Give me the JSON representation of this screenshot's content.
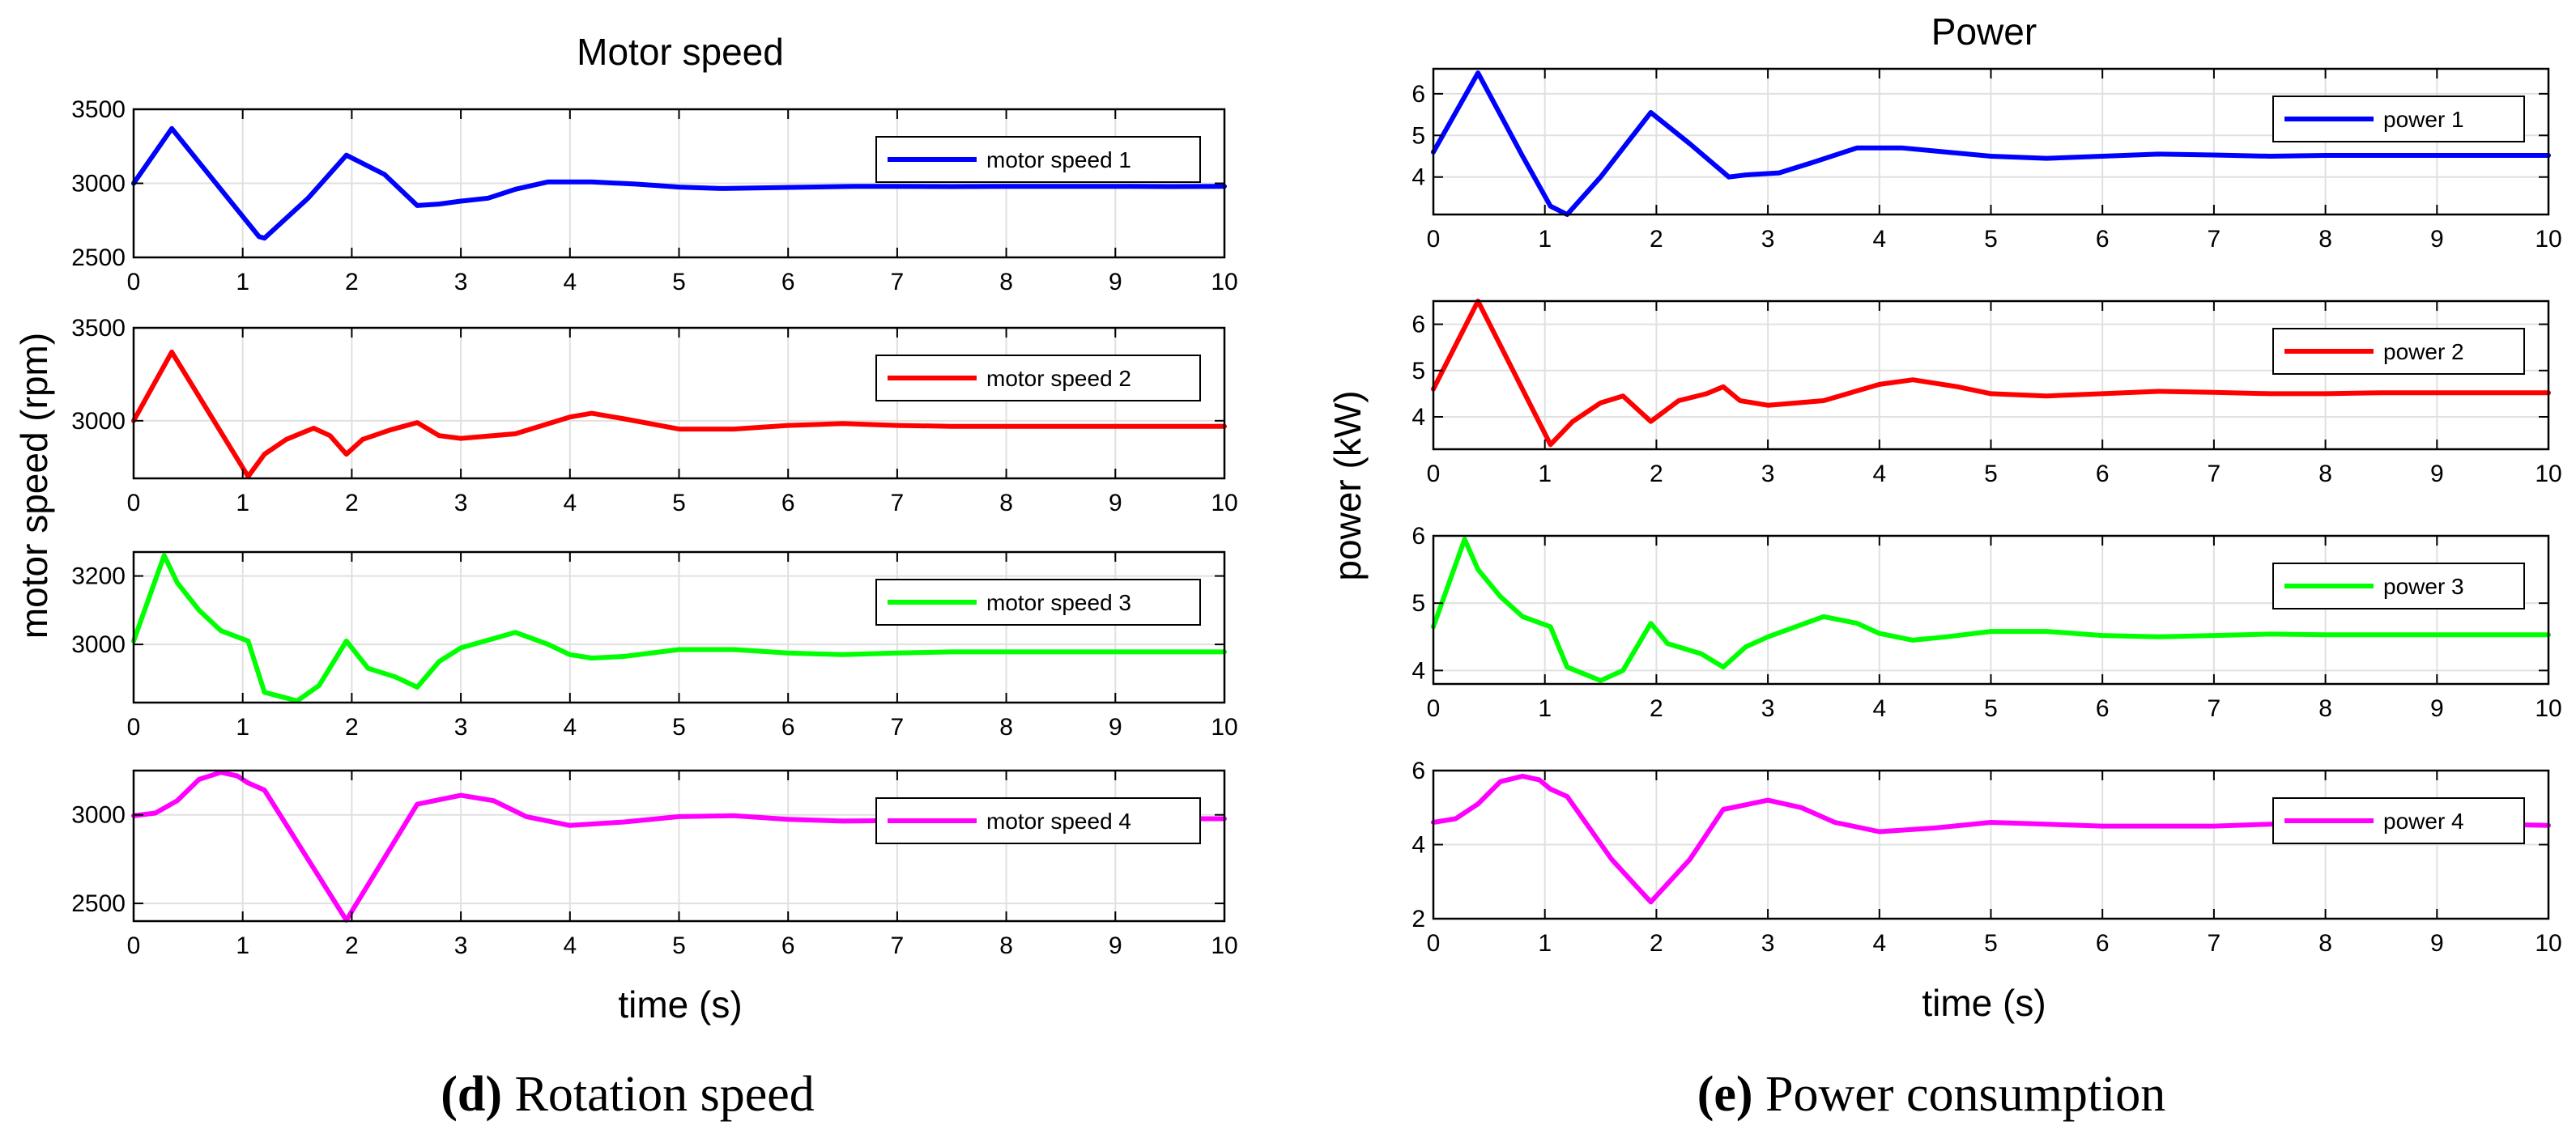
{
  "panels": [
    {
      "panel_title": "Motor speed",
      "ylabel": "motor speed (rpm)",
      "xlabel": "time (s)",
      "caption_letter": "(d)",
      "caption_text": " Rotation speed"
    },
    {
      "panel_title": "Power",
      "ylabel": "power (kW)",
      "xlabel": "time (s)",
      "caption_letter": "(e)",
      "caption_text": " Power consumption"
    }
  ],
  "chart_data": [
    {
      "type": "line",
      "xlim": [
        0,
        10
      ],
      "ylim": [
        2500,
        3500
      ],
      "xticks": [
        0,
        1,
        2,
        3,
        4,
        5,
        6,
        7,
        8,
        9,
        10
      ],
      "yticks": [
        2500,
        3000,
        3500
      ],
      "grid": true,
      "legend_position": "top-right",
      "series": [
        {
          "name": "motor speed 1",
          "color": "#0000ff",
          "x": [
            0,
            0.35,
            1.15,
            1.2,
            1.6,
            1.95,
            2.3,
            2.6,
            2.8,
            3.0,
            3.25,
            3.5,
            3.8,
            4.2,
            4.6,
            5.0,
            5.4,
            5.8,
            6.2,
            6.6,
            7.0,
            7.5,
            8.0,
            8.5,
            9.0,
            9.5,
            10.0
          ],
          "y": [
            3000,
            3370,
            2640,
            2630,
            2900,
            3190,
            3060,
            2850,
            2860,
            2880,
            2900,
            2960,
            3010,
            3010,
            2995,
            2975,
            2965,
            2970,
            2975,
            2980,
            2980,
            2978,
            2980,
            2980,
            2980,
            2978,
            2980
          ]
        }
      ]
    },
    {
      "type": "line",
      "xlim": [
        0,
        10
      ],
      "ylim": [
        2690,
        3500
      ],
      "xticks": [
        0,
        1,
        2,
        3,
        4,
        5,
        6,
        7,
        8,
        9,
        10
      ],
      "yticks": [
        3000,
        3500
      ],
      "grid": true,
      "legend_position": "top-right",
      "series": [
        {
          "name": "motor speed 2",
          "color": "#ff0000",
          "x": [
            0,
            0.35,
            1.05,
            1.2,
            1.4,
            1.65,
            1.8,
            1.95,
            2.1,
            2.35,
            2.6,
            2.8,
            3.0,
            3.5,
            4.0,
            4.2,
            4.5,
            5.0,
            5.5,
            6.0,
            6.5,
            7.0,
            7.5,
            8.0,
            8.5,
            9.0,
            9.5,
            10.0
          ],
          "y": [
            3000,
            3370,
            2700,
            2820,
            2900,
            2960,
            2920,
            2820,
            2900,
            2950,
            2990,
            2920,
            2905,
            2930,
            3020,
            3040,
            3010,
            2955,
            2955,
            2975,
            2985,
            2975,
            2970,
            2970,
            2970,
            2970,
            2970,
            2970
          ]
        }
      ]
    },
    {
      "type": "line",
      "xlim": [
        0,
        10
      ],
      "ylim": [
        2830,
        3270
      ],
      "xticks": [
        0,
        1,
        2,
        3,
        4,
        5,
        6,
        7,
        8,
        9,
        10
      ],
      "yticks": [
        3000,
        3200
      ],
      "grid": true,
      "legend_position": "top-right",
      "series": [
        {
          "name": "motor speed 3",
          "color": "#00ff00",
          "x": [
            0,
            0.28,
            0.4,
            0.6,
            0.8,
            1.05,
            1.2,
            1.5,
            1.7,
            1.95,
            2.15,
            2.4,
            2.6,
            2.8,
            3.0,
            3.5,
            3.8,
            4.0,
            4.2,
            4.5,
            5.0,
            5.5,
            6.0,
            6.5,
            7.0,
            7.5,
            8.0,
            8.5,
            9.0,
            9.5,
            10.0
          ],
          "y": [
            3010,
            3260,
            3180,
            3100,
            3040,
            3010,
            2860,
            2835,
            2880,
            3010,
            2930,
            2905,
            2875,
            2950,
            2990,
            3035,
            3000,
            2970,
            2960,
            2965,
            2985,
            2985,
            2975,
            2970,
            2975,
            2978,
            2978,
            2978,
            2978,
            2978,
            2978
          ]
        }
      ]
    },
    {
      "type": "line",
      "xlim": [
        0,
        10
      ],
      "ylim": [
        2400,
        3250
      ],
      "xticks": [
        0,
        1,
        2,
        3,
        4,
        5,
        6,
        7,
        8,
        9,
        10
      ],
      "yticks": [
        2500,
        3000
      ],
      "grid": true,
      "legend_position": "top-right",
      "series": [
        {
          "name": "motor speed 4",
          "color": "#ff00ff",
          "x": [
            0,
            0.2,
            0.4,
            0.6,
            0.8,
            0.95,
            1.05,
            1.2,
            1.95,
            2.6,
            3.0,
            3.3,
            3.6,
            4.0,
            4.5,
            5.0,
            5.5,
            6.0,
            6.5,
            7.0,
            7.5,
            8.0,
            8.5,
            9.0,
            9.5,
            10.0
          ],
          "y": [
            2995,
            3010,
            3080,
            3200,
            3240,
            3220,
            3180,
            3140,
            2405,
            3060,
            3110,
            3080,
            2990,
            2940,
            2960,
            2990,
            2995,
            2975,
            2965,
            2968,
            2975,
            2978,
            2978,
            2978,
            2978,
            2978
          ]
        }
      ]
    },
    {
      "type": "line",
      "xlim": [
        0,
        10
      ],
      "ylim": [
        3.1,
        6.6
      ],
      "xticks": [
        0,
        1,
        2,
        3,
        4,
        5,
        6,
        7,
        8,
        9,
        10
      ],
      "yticks": [
        4,
        5,
        6
      ],
      "grid": true,
      "legend_position": "top-right",
      "series": [
        {
          "name": "power 1",
          "color": "#0000ff",
          "x": [
            0,
            0.4,
            0.8,
            1.05,
            1.2,
            1.5,
            1.95,
            2.3,
            2.65,
            2.8,
            3.1,
            3.4,
            3.8,
            4.2,
            4.6,
            5.0,
            5.5,
            6.0,
            6.5,
            7.0,
            7.5,
            8.0,
            8.5,
            9.0,
            9.5,
            10.0
          ],
          "y": [
            4.6,
            6.5,
            4.5,
            3.3,
            3.1,
            4.0,
            5.55,
            4.8,
            4.0,
            4.05,
            4.1,
            4.35,
            4.7,
            4.7,
            4.6,
            4.5,
            4.45,
            4.5,
            4.55,
            4.53,
            4.5,
            4.52,
            4.52,
            4.52,
            4.52,
            4.52
          ]
        }
      ]
    },
    {
      "type": "line",
      "xlim": [
        0,
        10
      ],
      "ylim": [
        3.3,
        6.5
      ],
      "xticks": [
        0,
        1,
        2,
        3,
        4,
        5,
        6,
        7,
        8,
        9,
        10
      ],
      "yticks": [
        4,
        5,
        6
      ],
      "grid": true,
      "legend_position": "top-right",
      "series": [
        {
          "name": "power 2",
          "color": "#ff0000",
          "x": [
            0,
            0.4,
            1.05,
            1.25,
            1.5,
            1.7,
            1.95,
            2.2,
            2.45,
            2.6,
            2.75,
            3.0,
            3.5,
            4.0,
            4.3,
            4.7,
            5.0,
            5.5,
            6.0,
            6.5,
            7.0,
            7.5,
            8.0,
            8.5,
            9.0,
            9.5,
            10.0
          ],
          "y": [
            4.6,
            6.5,
            3.4,
            3.9,
            4.3,
            4.45,
            3.9,
            4.35,
            4.5,
            4.65,
            4.35,
            4.25,
            4.35,
            4.7,
            4.8,
            4.65,
            4.5,
            4.45,
            4.5,
            4.55,
            4.53,
            4.5,
            4.5,
            4.52,
            4.52,
            4.52,
            4.52
          ]
        }
      ]
    },
    {
      "type": "line",
      "xlim": [
        0,
        10
      ],
      "ylim": [
        3.8,
        6.0
      ],
      "xticks": [
        0,
        1,
        2,
        3,
        4,
        5,
        6,
        7,
        8,
        9,
        10
      ],
      "yticks": [
        4,
        5,
        6
      ],
      "grid": true,
      "legend_position": "top-right",
      "series": [
        {
          "name": "power 3",
          "color": "#00ff00",
          "x": [
            0,
            0.28,
            0.4,
            0.6,
            0.8,
            1.05,
            1.2,
            1.5,
            1.7,
            1.95,
            2.1,
            2.4,
            2.6,
            2.8,
            3.0,
            3.5,
            3.8,
            4.0,
            4.3,
            4.6,
            5.0,
            5.5,
            6.0,
            6.5,
            7.0,
            7.5,
            8.0,
            8.5,
            9.0,
            9.5,
            10.0
          ],
          "y": [
            4.65,
            5.95,
            5.5,
            5.1,
            4.8,
            4.65,
            4.05,
            3.85,
            4.0,
            4.7,
            4.4,
            4.25,
            4.05,
            4.35,
            4.5,
            4.8,
            4.7,
            4.55,
            4.45,
            4.5,
            4.58,
            4.58,
            4.52,
            4.5,
            4.52,
            4.54,
            4.53,
            4.53,
            4.53,
            4.53,
            4.53
          ]
        }
      ]
    },
    {
      "type": "line",
      "xlim": [
        0,
        10
      ],
      "ylim": [
        2,
        6
      ],
      "xticks": [
        0,
        1,
        2,
        3,
        4,
        5,
        6,
        7,
        8,
        9,
        10
      ],
      "yticks": [
        2,
        4,
        6
      ],
      "grid": true,
      "legend_position": "top-right",
      "series": [
        {
          "name": "power 4",
          "color": "#ff00ff",
          "x": [
            0,
            0.2,
            0.4,
            0.6,
            0.8,
            0.95,
            1.05,
            1.2,
            1.6,
            1.95,
            2.3,
            2.6,
            3.0,
            3.3,
            3.6,
            4.0,
            4.5,
            5.0,
            5.5,
            6.0,
            6.5,
            7.0,
            7.5,
            8.0,
            8.5,
            9.0,
            9.5,
            10.0
          ],
          "y": [
            4.6,
            4.7,
            5.1,
            5.7,
            5.85,
            5.75,
            5.5,
            5.3,
            3.6,
            2.45,
            3.6,
            4.95,
            5.2,
            5.0,
            4.6,
            4.35,
            4.45,
            4.6,
            4.55,
            4.5,
            4.5,
            4.5,
            4.55,
            4.55,
            4.55,
            4.55,
            4.55,
            4.52
          ]
        }
      ]
    }
  ]
}
